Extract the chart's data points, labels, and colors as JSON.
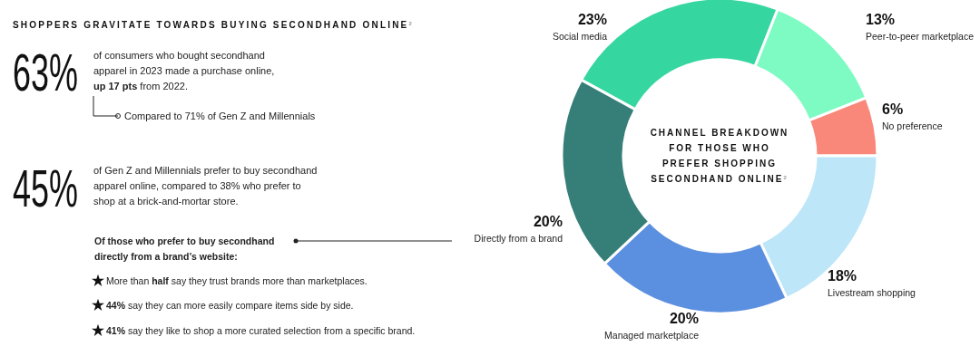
{
  "chart_data": {
    "type": "donut",
    "title": "SHOPPERS GRAVITATE TOWARDS BUYING SECONDHAND ONLINE$^{2}$",
    "subtitle": "CHANNEL BREAKDOWN FOR THOSE WHO PREFER SHOPPING SECONDHAND ONLINE$^{2}$",
    "categories": [
      "Social media",
      "Peer-to-peer marketplace",
      "No preference",
      "Livestream shopping",
      "Managed marketplace",
      "Directly from a brand"
    ],
    "values": [
      23,
      13,
      6,
      18,
      20,
      20
    ],
    "colors": [
      "#36d6a0",
      "#7dfbc2",
      "#f9877a",
      "#bde6f8",
      "#5b8fdf",
      "#367f78"
    ],
    "value_labels": [
      "23%",
      "13%",
      "6%",
      "18%",
      "20%",
      "20%"
    ],
    "annotations": [
      "63%",
      "of consumers who bought secondhand",
      "apparel in 2023 made a purchase online,",
      "up 17 pts",
      "from 2022.",
      "Compared to 71% of Gen Z and Millennials",
      "45%",
      "of Gen Z and Millennials prefer to buy secondhand",
      "apparel online, compared to 38% who prefer to",
      "shop at a brick-and-mortar store.",
      "Of those who prefer to buy secondhand",
      "directly from a brand’s website:",
      "More than",
      "half",
      "say they trust brands more than marketplaces.",
      "44%",
      "say they can more easily compare items side by side.",
      "41%",
      "say they like to shop a more curated selection from a specific brand."
    ]
  }
}
